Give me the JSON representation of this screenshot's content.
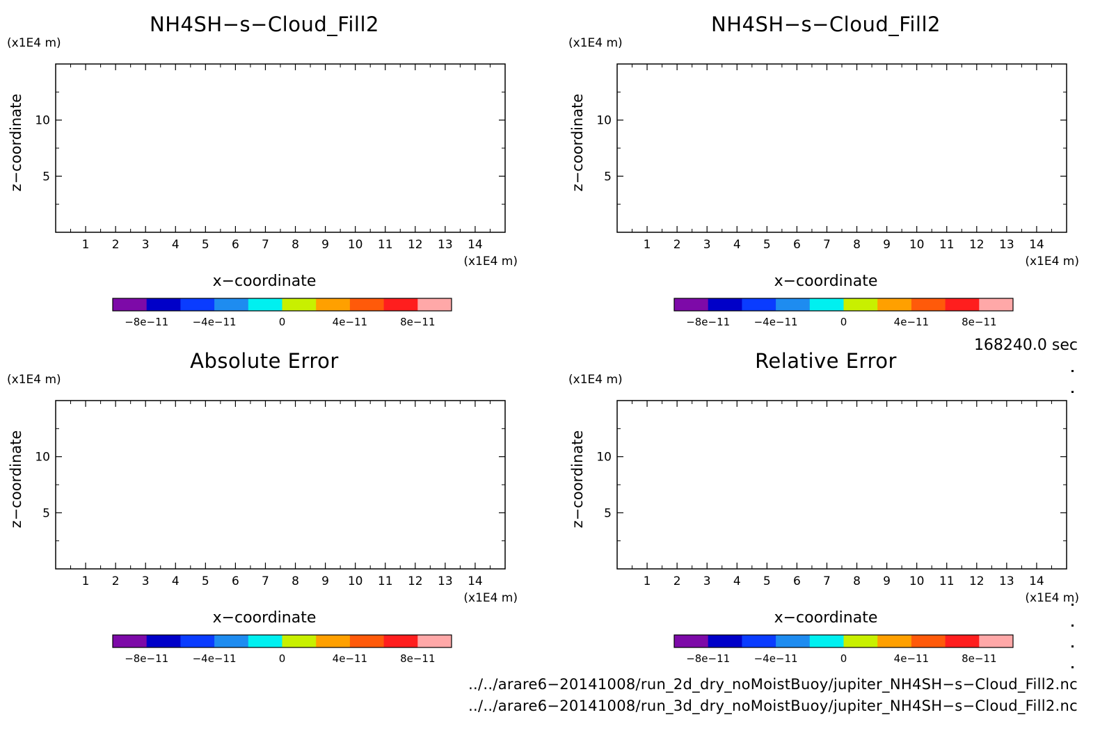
{
  "chart_data": [
    {
      "type": "heatmap",
      "title": "NH4SH−s−Cloud_Fill2",
      "xlabel": "x−coordinate",
      "ylabel": "z−coordinate",
      "x_unit": "(x1E4 m)",
      "y_unit": "(x1E4 m)",
      "xlim": [
        0,
        15
      ],
      "ylim": [
        0,
        15
      ],
      "xticks": [
        1,
        2,
        3,
        4,
        5,
        6,
        7,
        8,
        9,
        10,
        11,
        12,
        13,
        14
      ],
      "yticks": [
        5,
        10
      ],
      "grid": false,
      "colorbar": {
        "ticks": [
          "−8e−11",
          "−4e−11",
          "0",
          "4e−11",
          "8e−11"
        ]
      },
      "values": []
    },
    {
      "type": "heatmap",
      "title": "NH4SH−s−Cloud_Fill2",
      "xlabel": "x−coordinate",
      "ylabel": "z−coordinate",
      "x_unit": "(x1E4 m)",
      "y_unit": "(x1E4 m)",
      "xlim": [
        0,
        15
      ],
      "ylim": [
        0,
        15
      ],
      "xticks": [
        1,
        2,
        3,
        4,
        5,
        6,
        7,
        8,
        9,
        10,
        11,
        12,
        13,
        14
      ],
      "yticks": [
        5,
        10
      ],
      "grid": false,
      "colorbar": {
        "ticks": [
          "−8e−11",
          "−4e−11",
          "0",
          "4e−11",
          "8e−11"
        ]
      },
      "values": []
    },
    {
      "type": "heatmap",
      "title": "Absolute Error",
      "xlabel": "x−coordinate",
      "ylabel": "z−coordinate",
      "x_unit": "(x1E4 m)",
      "y_unit": "(x1E4 m)",
      "xlim": [
        0,
        15
      ],
      "ylim": [
        0,
        15
      ],
      "xticks": [
        1,
        2,
        3,
        4,
        5,
        6,
        7,
        8,
        9,
        10,
        11,
        12,
        13,
        14
      ],
      "yticks": [
        5,
        10
      ],
      "grid": false,
      "colorbar": {
        "ticks": [
          "−8e−11",
          "−4e−11",
          "0",
          "4e−11",
          "8e−11"
        ]
      },
      "values": []
    },
    {
      "type": "heatmap",
      "title": "Relative Error",
      "xlabel": "x−coordinate",
      "ylabel": "z−coordinate",
      "x_unit": "(x1E4 m)",
      "y_unit": "(x1E4 m)",
      "xlim": [
        0,
        15
      ],
      "ylim": [
        0,
        15
      ],
      "xticks": [
        1,
        2,
        3,
        4,
        5,
        6,
        7,
        8,
        9,
        10,
        11,
        12,
        13,
        14
      ],
      "yticks": [
        5,
        10
      ],
      "grid": false,
      "colorbar": {
        "ticks": [
          "−8e−11",
          "−4e−11",
          "0",
          "4e−11",
          "8e−11"
        ]
      },
      "values": []
    }
  ],
  "colorbar_colors": [
    "#7d0aa8",
    "#0000c8",
    "#0a3cff",
    "#1e8cf0",
    "#00f0f0",
    "#c8f000",
    "#ffa000",
    "#ff5a0a",
    "#ff1e1e",
    "#ffa8a8"
  ],
  "timestamp": "168240.0 sec",
  "footer": {
    "line1": "../../arare6−20141008/run_2d_dry_noMoistBuoy/jupiter_NH4SH−s−Cloud_Fill2.nc",
    "line2": "../../arare6−20141008/run_3d_dry_noMoistBuoy/jupiter_NH4SH−s−Cloud_Fill2.nc"
  }
}
